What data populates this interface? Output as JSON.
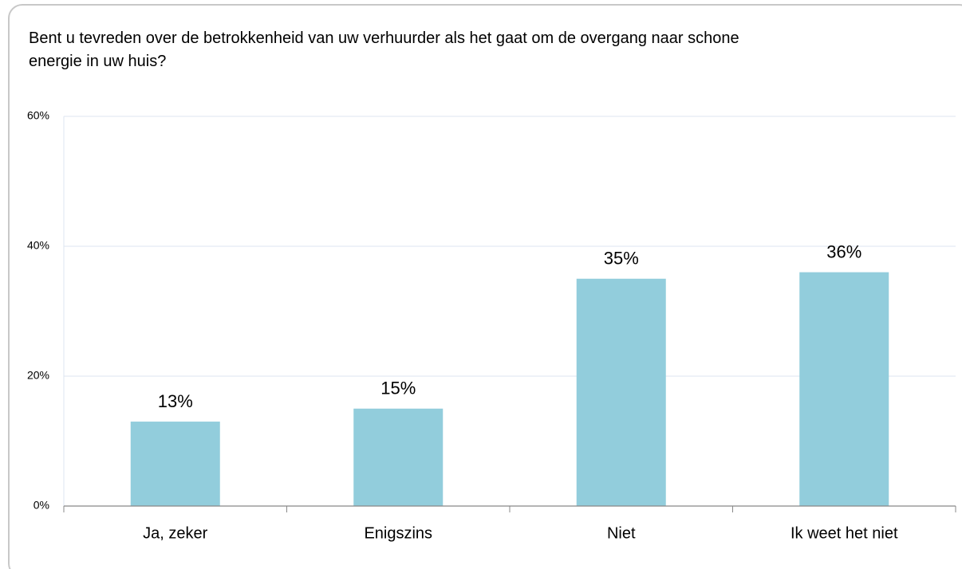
{
  "chart_data": {
    "type": "bar",
    "title": "Bent u tevreden over de betrokkenheid van uw verhuurder als het gaat om de overgang naar schone energie in uw huis?",
    "categories": [
      "Ja, zeker",
      "Enigszins",
      "Niet",
      "Ik weet het niet"
    ],
    "values": [
      13,
      15,
      35,
      36
    ],
    "value_labels": [
      "13%",
      "15%",
      "35%",
      "36%"
    ],
    "color": "#92cddc",
    "ylim": [
      0,
      60
    ],
    "yticks": [
      {
        "value": 0,
        "label": "0%"
      },
      {
        "value": 20,
        "label": "20%"
      },
      {
        "value": 40,
        "label": "40%"
      },
      {
        "value": 60,
        "label": "60%"
      }
    ],
    "grid": true
  }
}
